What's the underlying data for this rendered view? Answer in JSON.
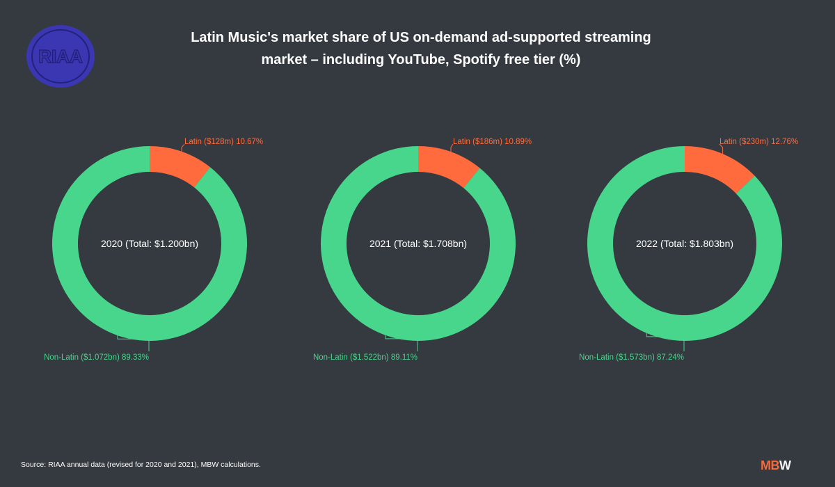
{
  "title": {
    "line1": "Latin Music's market share of US on-demand ad-supported streaming",
    "line2": "market – including YouTube, Spotify free tier (%)"
  },
  "logo": {
    "text": "RIAA",
    "color": "#3b37b3"
  },
  "source": "Source: RIAA annual data (revised for 2020 and 2021), MBW calculations.",
  "brand": {
    "part1": "MB",
    "part2": "W"
  },
  "colors": {
    "latin": "#ff6b3d",
    "non_latin": "#48d58c",
    "background": "#353a40"
  },
  "chart_data": [
    {
      "type": "pie",
      "center_label": "2020 (Total: $1.200bn)",
      "slices": [
        {
          "name": "Latin",
          "value": 10.67,
          "label": "Latin ($128m) 10.67%",
          "color": "#ff6b3d"
        },
        {
          "name": "Non-Latin",
          "value": 89.33,
          "label": "Non-Latin ($1.072bn) 89.33%",
          "color": "#48d58c"
        }
      ]
    },
    {
      "type": "pie",
      "center_label": "2021 (Total: $1.708bn)",
      "slices": [
        {
          "name": "Latin",
          "value": 10.89,
          "label": "Latin ($186m) 10.89%",
          "color": "#ff6b3d"
        },
        {
          "name": "Non-Latin",
          "value": 89.11,
          "label": "Non-Latin ($1.522bn) 89.11%",
          "color": "#48d58c"
        }
      ]
    },
    {
      "type": "pie",
      "center_label": "2022 (Total: $1.803bn)",
      "slices": [
        {
          "name": "Latin",
          "value": 12.76,
          "label": "Latin ($230m) 12.76%",
          "color": "#ff6b3d"
        },
        {
          "name": "Non-Latin",
          "value": 87.24,
          "label": "Non-Latin ($1.573bn) 87.24%",
          "color": "#48d58c"
        }
      ]
    }
  ]
}
